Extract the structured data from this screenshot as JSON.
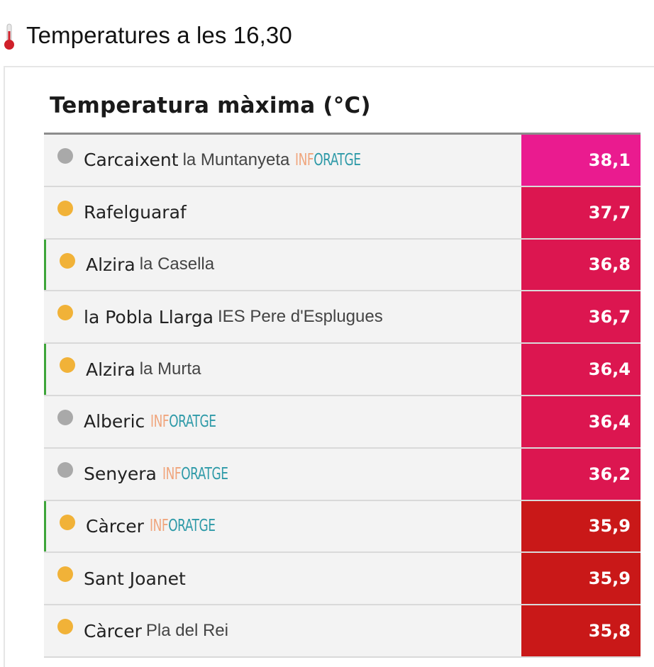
{
  "post": {
    "title": "Temperatures a les 16,30",
    "icon": "thermometer-icon"
  },
  "table": {
    "title": "Temperatura màxima (°C)",
    "rows": [
      {
        "station": "Carcaixent",
        "sub": "la Muntanyeta",
        "brand": [
          "INF",
          "ORATGE"
        ],
        "value": "38,1",
        "dot": "grey",
        "color": "#ea1b8f",
        "marked": false
      },
      {
        "station": "Rafelguaraf",
        "sub": "",
        "brand": null,
        "value": "37,7",
        "dot": "orange",
        "color": "#dc1650",
        "marked": false
      },
      {
        "station": "Alzira",
        "sub": "la Casella",
        "brand": null,
        "value": "36,8",
        "dot": "orange",
        "color": "#dc1650",
        "marked": true
      },
      {
        "station": "la Pobla Llarga",
        "sub": "IES Pere d'Esplugues",
        "brand": null,
        "value": "36,7",
        "dot": "orange",
        "color": "#dc1650",
        "marked": false
      },
      {
        "station": "Alzira",
        "sub": "la Murta",
        "brand": null,
        "value": "36,4",
        "dot": "orange",
        "color": "#dc1650",
        "marked": true
      },
      {
        "station": "Alberic",
        "sub": "",
        "brand": [
          "INF",
          "ORATGE"
        ],
        "value": "36,4",
        "dot": "grey",
        "color": "#dc1650",
        "marked": false
      },
      {
        "station": "Senyera",
        "sub": "",
        "brand": [
          "INF",
          "ORATGE"
        ],
        "value": "36,2",
        "dot": "grey",
        "color": "#dc1650",
        "marked": false
      },
      {
        "station": "Càrcer",
        "sub": "",
        "brand": [
          "INF",
          "ORATGE"
        ],
        "value": "35,9",
        "dot": "orange",
        "color": "#c91818",
        "marked": true
      },
      {
        "station": "Sant Joanet",
        "sub": "",
        "brand": null,
        "value": "35,9",
        "dot": "orange",
        "color": "#c91818",
        "marked": false
      },
      {
        "station": "Càrcer",
        "sub": "Pla del Rei",
        "brand": null,
        "value": "35,8",
        "dot": "orange",
        "color": "#c91818",
        "marked": false
      }
    ]
  }
}
